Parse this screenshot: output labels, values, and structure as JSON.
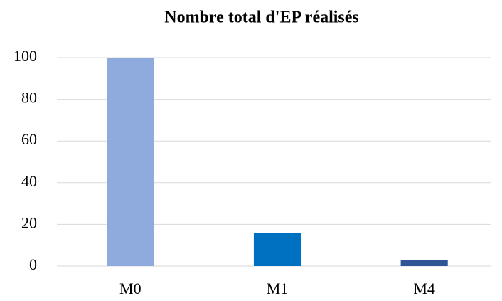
{
  "chart_data": {
    "type": "bar",
    "title": "Nombre total d'EP réalisés",
    "categories": [
      "M0",
      "M1",
      "M4"
    ],
    "values": [
      100,
      16,
      3
    ],
    "colors": [
      "#8faadc",
      "#0070c0",
      "#2f5597"
    ],
    "ylim": [
      0,
      100
    ],
    "yticks": [
      0,
      20,
      40,
      60,
      80,
      100
    ],
    "grid": true
  }
}
